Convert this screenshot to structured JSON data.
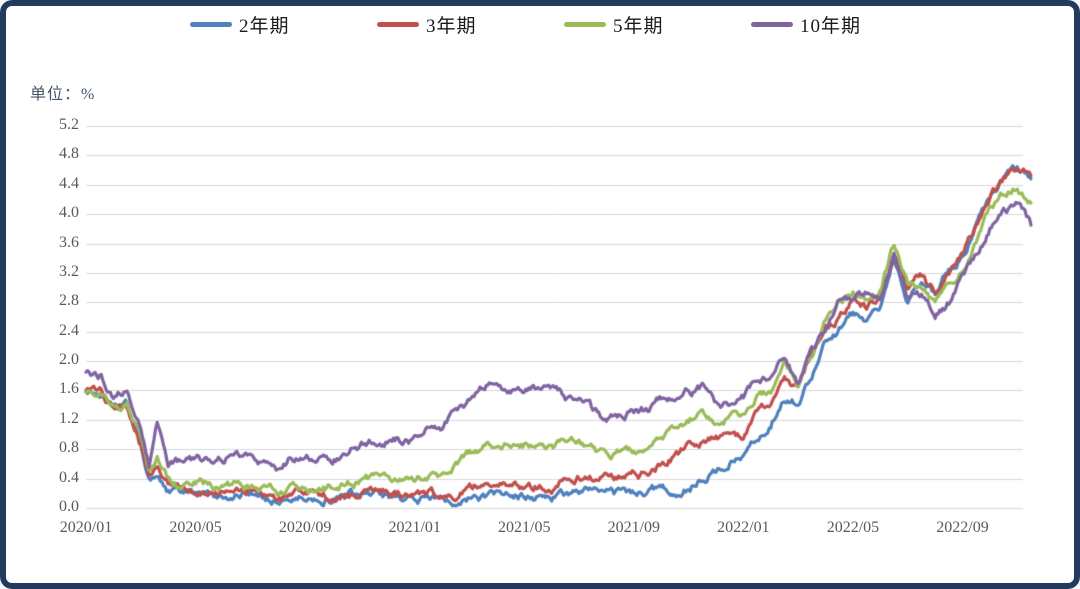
{
  "chart_data": {
    "type": "line",
    "title": "",
    "unit_label": "单位：%",
    "legend_position": "top",
    "grid": "horizontal-only",
    "ylim": [
      0.0,
      5.2
    ],
    "y_tick_step": 0.4,
    "y_ticks": [
      {
        "v": 5.2,
        "label": "5.2"
      },
      {
        "v": 4.8,
        "label": "4.8"
      },
      {
        "v": 4.4,
        "label": "4.4"
      },
      {
        "v": 4.0,
        "label": "4.0"
      },
      {
        "v": 3.6,
        "label": "3.6"
      },
      {
        "v": 3.2,
        "label": "3.2"
      },
      {
        "v": 2.8,
        "label": "2.8"
      },
      {
        "v": 2.4,
        "label": "2.4"
      },
      {
        "v": 2.0,
        "label": "2.0"
      },
      {
        "v": 1.6,
        "label": "1.6"
      },
      {
        "v": 1.2,
        "label": "1.2"
      },
      {
        "v": 0.8,
        "label": "0.8"
      },
      {
        "v": 0.4,
        "label": "0.4"
      },
      {
        "v": 0.0,
        "label": "0.0"
      }
    ],
    "x_axis_note": "x values are months elapsed since 2020/01, semi-monthly sampling",
    "x_ticks": [
      {
        "m": 0,
        "label": "2020/01"
      },
      {
        "m": 4,
        "label": "2020/05"
      },
      {
        "m": 8,
        "label": "2020/09"
      },
      {
        "m": 12,
        "label": "2021/01"
      },
      {
        "m": 16,
        "label": "2021/05"
      },
      {
        "m": 20,
        "label": "2021/09"
      },
      {
        "m": 24,
        "label": "2022/01"
      },
      {
        "m": 28,
        "label": "2022/05"
      },
      {
        "m": 32,
        "label": "2022/09"
      }
    ],
    "x": [
      0,
      0.5,
      1,
      1.5,
      2,
      2.3,
      2.6,
      3,
      3.5,
      4,
      4.5,
      5,
      5.5,
      6,
      6.5,
      7,
      7.5,
      8,
      8.5,
      9,
      9.5,
      10,
      10.5,
      11,
      11.5,
      12,
      12.5,
      13,
      13.5,
      14,
      14.5,
      15,
      15.5,
      16,
      16.5,
      17,
      17.5,
      18,
      18.5,
      19,
      19.5,
      20,
      20.5,
      21,
      21.5,
      22,
      22.5,
      23,
      23.5,
      24,
      24.5,
      25,
      25.5,
      26,
      26.5,
      27,
      27.5,
      28,
      28.5,
      29,
      29.5,
      30,
      30.5,
      31,
      31.5,
      32,
      32.5,
      33,
      33.5,
      34,
      34.5
    ],
    "series": [
      {
        "name": "2年期",
        "color": "#4F81BD",
        "values": [
          1.58,
          1.56,
          1.36,
          1.42,
          0.88,
          0.38,
          0.47,
          0.23,
          0.2,
          0.2,
          0.16,
          0.16,
          0.19,
          0.16,
          0.15,
          0.11,
          0.14,
          0.13,
          0.14,
          0.13,
          0.14,
          0.16,
          0.18,
          0.15,
          0.12,
          0.12,
          0.13,
          0.11,
          0.11,
          0.13,
          0.15,
          0.16,
          0.16,
          0.16,
          0.16,
          0.14,
          0.16,
          0.25,
          0.22,
          0.19,
          0.2,
          0.21,
          0.21,
          0.28,
          0.22,
          0.27,
          0.4,
          0.52,
          0.66,
          0.73,
          0.97,
          1.18,
          1.47,
          1.44,
          1.85,
          2.33,
          2.45,
          2.62,
          2.59,
          2.66,
          3.38,
          2.84,
          3.13,
          2.9,
          3.25,
          3.45,
          3.87,
          4.22,
          4.45,
          4.6,
          4.48
        ]
      },
      {
        "name": "3年期",
        "color": "#C0504D",
        "values": [
          1.56,
          1.55,
          1.33,
          1.39,
          0.85,
          0.39,
          0.54,
          0.29,
          0.25,
          0.24,
          0.19,
          0.21,
          0.23,
          0.19,
          0.17,
          0.13,
          0.16,
          0.16,
          0.17,
          0.16,
          0.18,
          0.21,
          0.23,
          0.21,
          0.17,
          0.17,
          0.2,
          0.19,
          0.22,
          0.3,
          0.33,
          0.35,
          0.33,
          0.32,
          0.31,
          0.3,
          0.46,
          0.45,
          0.4,
          0.39,
          0.42,
          0.44,
          0.47,
          0.58,
          0.72,
          0.83,
          0.93,
          0.97,
          0.98,
          0.96,
          1.25,
          1.4,
          1.8,
          1.62,
          2.1,
          2.53,
          2.6,
          2.84,
          2.73,
          2.81,
          3.49,
          2.98,
          3.15,
          2.91,
          3.23,
          3.46,
          3.85,
          4.25,
          4.5,
          4.62,
          4.52
        ]
      },
      {
        "name": "5年期",
        "color": "#9BBB59",
        "values": [
          1.59,
          1.56,
          1.35,
          1.4,
          0.92,
          0.46,
          0.66,
          0.38,
          0.34,
          0.36,
          0.31,
          0.31,
          0.33,
          0.29,
          0.28,
          0.21,
          0.29,
          0.26,
          0.28,
          0.28,
          0.31,
          0.38,
          0.4,
          0.36,
          0.37,
          0.36,
          0.45,
          0.42,
          0.58,
          0.73,
          0.82,
          0.92,
          0.84,
          0.85,
          0.82,
          0.8,
          0.89,
          0.89,
          0.78,
          0.69,
          0.77,
          0.78,
          0.84,
          0.97,
          1.12,
          1.18,
          1.27,
          1.14,
          1.23,
          1.26,
          1.55,
          1.61,
          1.92,
          1.71,
          2.1,
          2.56,
          2.79,
          2.92,
          2.88,
          2.94,
          3.6,
          3.01,
          3.05,
          2.83,
          2.97,
          3.3,
          3.63,
          4.06,
          4.27,
          4.37,
          4.15
        ]
      },
      {
        "name": "10年期",
        "color": "#8064A2",
        "values": [
          1.88,
          1.81,
          1.54,
          1.59,
          1.13,
          0.54,
          1.18,
          0.62,
          0.63,
          0.64,
          0.64,
          0.66,
          0.75,
          0.68,
          0.62,
          0.55,
          0.71,
          0.68,
          0.68,
          0.68,
          0.74,
          0.86,
          0.91,
          0.92,
          0.92,
          0.93,
          1.09,
          1.09,
          1.3,
          1.44,
          1.62,
          1.74,
          1.59,
          1.63,
          1.64,
          1.62,
          1.51,
          1.45,
          1.31,
          1.2,
          1.28,
          1.3,
          1.33,
          1.48,
          1.57,
          1.58,
          1.63,
          1.43,
          1.44,
          1.52,
          1.78,
          1.79,
          2.05,
          1.72,
          2.14,
          2.38,
          2.83,
          2.89,
          2.93,
          2.85,
          3.47,
          2.88,
          2.93,
          2.6,
          2.79,
          3.15,
          3.45,
          3.83,
          4.0,
          4.15,
          3.85
        ]
      }
    ],
    "colors": {
      "gridline": "#d9d9d9",
      "axis_text": "#595959",
      "unit_text": "#44546a",
      "legend_text": "#1a1a1a",
      "card_border": "#24395e",
      "background": "#ffffff"
    }
  }
}
